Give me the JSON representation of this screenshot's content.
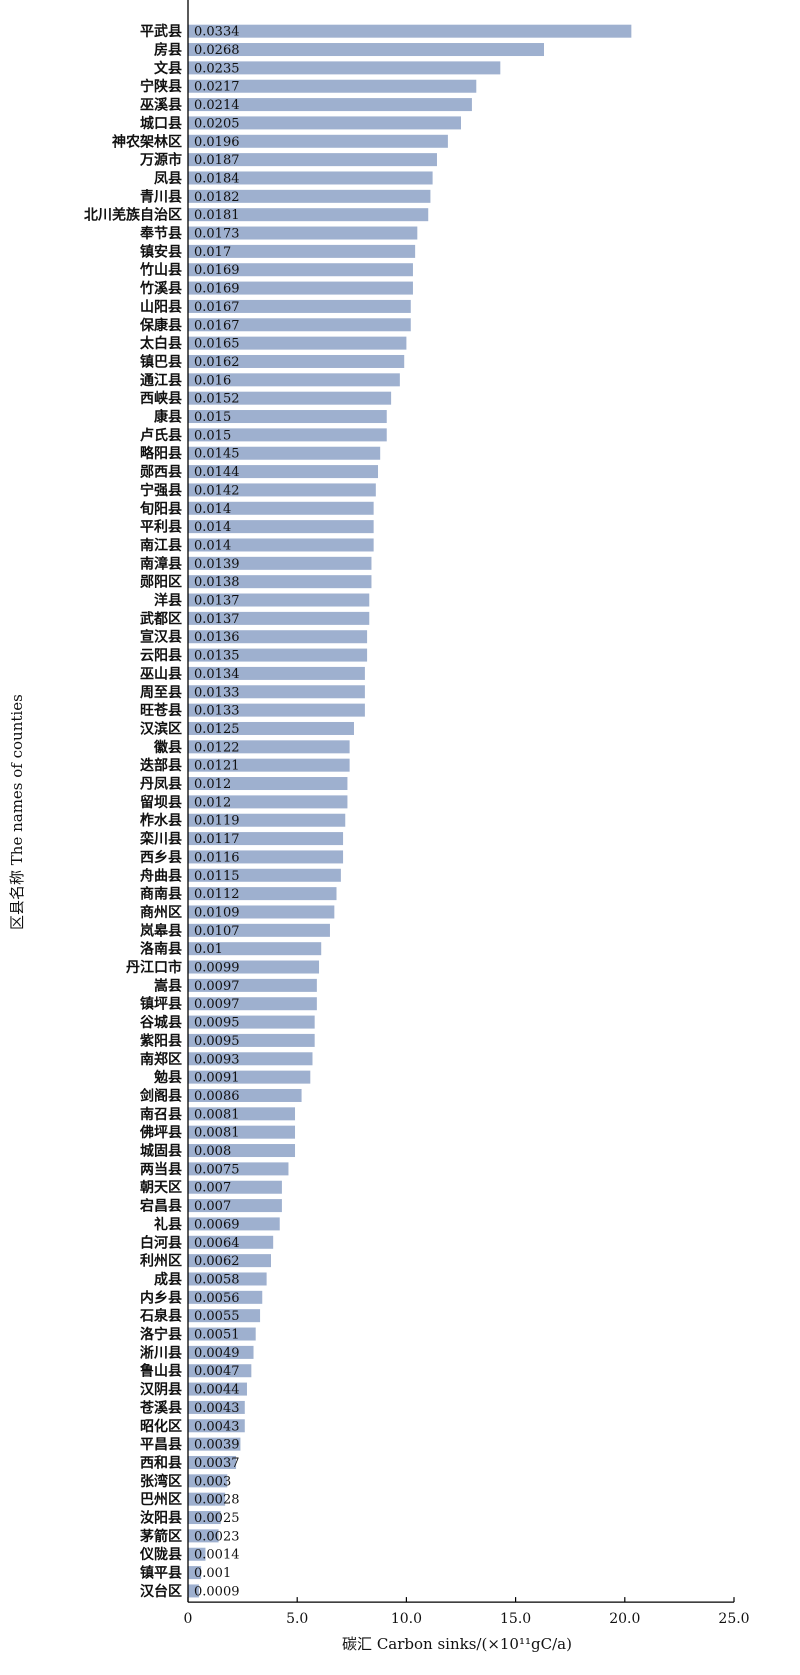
{
  "chart_data": {
    "type": "bar",
    "orientation": "horizontal",
    "xlabel": "碳汇 Carbon sinks/(×10¹¹gC/a)",
    "ylabel": "区县名称 The names of counties",
    "xlim": [
      0,
      25
    ],
    "xticks": [
      "0",
      "5.0",
      "10.0",
      "15.0",
      "20.0",
      "25.0"
    ],
    "bar_color": "#9eb0cf",
    "grid": false,
    "categories": [
      "平武县",
      "房县",
      "文县",
      "宁陕县",
      "巫溪县",
      "城口县",
      "神农架林区",
      "万源市",
      "凤县",
      "青川县",
      "北川羌族自治区",
      "奉节县",
      "镇安县",
      "竹山县",
      "竹溪县",
      "山阳县",
      "保康县",
      "太白县",
      "镇巴县",
      "通江县",
      "西峡县",
      "康县",
      "卢氏县",
      "略阳县",
      "郧西县",
      "宁强县",
      "旬阳县",
      "平利县",
      "南江县",
      "南漳县",
      "郧阳区",
      "洋县",
      "武都区",
      "宣汉县",
      "云阳县",
      "巫山县",
      "周至县",
      "旺苍县",
      "汉滨区",
      "徽县",
      "迭部县",
      "丹凤县",
      "留坝县",
      "柞水县",
      "栾川县",
      "西乡县",
      "舟曲县",
      "商南县",
      "商州区",
      "岚皋县",
      "洛南县",
      "丹江口市",
      "嵩县",
      "镇坪县",
      "谷城县",
      "紫阳县",
      "南郑区",
      "勉县",
      "剑阁县",
      "南召县",
      "佛坪县",
      "城固县",
      "两当县",
      "朝天区",
      "宕昌县",
      "礼县",
      "白河县",
      "利州区",
      "成县",
      "内乡县",
      "石泉县",
      "洛宁县",
      "淅川县",
      "鲁山县",
      "汉阴县",
      "苍溪县",
      "昭化区",
      "平昌县",
      "西和县",
      "张湾区",
      "巴州区",
      "汝阳县",
      "茅箭区",
      "仪陇县",
      "镇平县",
      "汉台区"
    ],
    "values": [
      20.3,
      16.3,
      14.3,
      13.2,
      13.0,
      12.5,
      11.9,
      11.4,
      11.2,
      11.1,
      11.0,
      10.5,
      10.4,
      10.3,
      10.3,
      10.2,
      10.2,
      10.0,
      9.9,
      9.7,
      9.3,
      9.1,
      9.1,
      8.8,
      8.7,
      8.6,
      8.5,
      8.5,
      8.5,
      8.4,
      8.4,
      8.3,
      8.3,
      8.2,
      8.2,
      8.1,
      8.1,
      8.1,
      7.6,
      7.4,
      7.4,
      7.3,
      7.3,
      7.2,
      7.1,
      7.1,
      7.0,
      6.8,
      6.7,
      6.5,
      6.1,
      6.0,
      5.9,
      5.9,
      5.8,
      5.8,
      5.7,
      5.6,
      5.2,
      4.9,
      4.9,
      4.9,
      4.6,
      4.3,
      4.3,
      4.2,
      3.9,
      3.8,
      3.6,
      3.4,
      3.3,
      3.1,
      3.0,
      2.9,
      2.7,
      2.6,
      2.6,
      2.4,
      2.2,
      1.8,
      1.7,
      1.5,
      1.4,
      0.8,
      0.6,
      0.5
    ],
    "bar_labels": [
      "0.0334",
      "0.0268",
      "0.0235",
      "0.0217",
      "0.0214",
      "0.0205",
      "0.0196",
      "0.0187",
      "0.0184",
      "0.0182",
      "0.0181",
      "0.0173",
      "0.017",
      "0.0169",
      "0.0169",
      "0.0167",
      "0.0167",
      "0.0165",
      "0.0162",
      "0.016",
      "0.0152",
      "0.015",
      "0.015",
      "0.0145",
      "0.0144",
      "0.0142",
      "0.014",
      "0.014",
      "0.014",
      "0.0139",
      "0.0138",
      "0.0137",
      "0.0137",
      "0.0136",
      "0.0135",
      "0.0134",
      "0.0133",
      "0.0133",
      "0.0125",
      "0.0122",
      "0.0121",
      "0.012",
      "0.012",
      "0.0119",
      "0.0117",
      "0.0116",
      "0.0115",
      "0.0112",
      "0.0109",
      "0.0107",
      "0.01",
      "0.0099",
      "0.0097",
      "0.0097",
      "0.0095",
      "0.0095",
      "0.0093",
      "0.0091",
      "0.0086",
      "0.0081",
      "0.0081",
      "0.008",
      "0.0075",
      "0.007",
      "0.007",
      "0.0069",
      "0.0064",
      "0.0062",
      "0.0058",
      "0.0056",
      "0.0055",
      "0.0051",
      "0.0049",
      "0.0047",
      "0.0044",
      "0.0043",
      "0.0043",
      "0.0039",
      "0.0037",
      "0.003",
      "0.0028",
      "0.0025",
      "0.0023",
      "0.0014",
      "0.001",
      "0.0009"
    ]
  }
}
